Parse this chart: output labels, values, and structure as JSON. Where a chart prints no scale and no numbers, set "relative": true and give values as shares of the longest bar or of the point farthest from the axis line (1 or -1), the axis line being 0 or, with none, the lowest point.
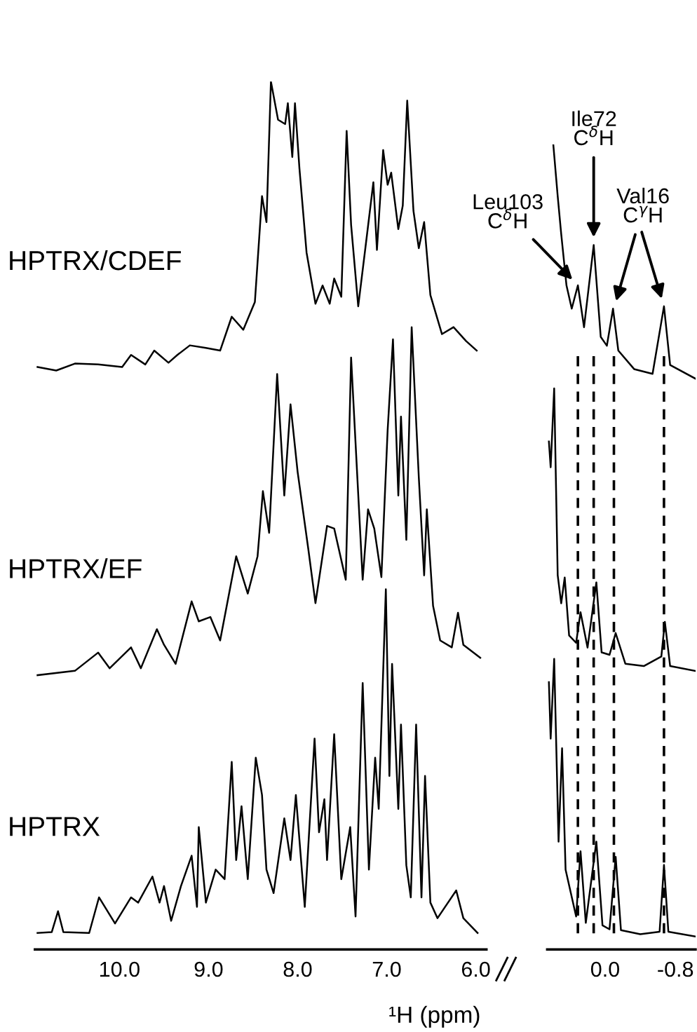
{
  "chart_data": [
    {
      "type": "line",
      "relative": true,
      "xlabel": "¹H (ppm)",
      "tick_labels": "x",
      "xlim": [
        10.95,
        5.88
      ],
      "xticks": [
        {
          "value": 10,
          "label": "10.0"
        },
        {
          "value": 9,
          "label": "9.0"
        },
        {
          "value": 8,
          "label": "8.0"
        },
        {
          "value": 7,
          "label": "7.0"
        },
        {
          "value": 6,
          "label": "6.0"
        }
      ],
      "series": [
        {
          "name": "HPTRX/CDEF",
          "color": "#000000",
          "x": [
            10.92,
            10.71,
            10.5,
            10.24,
            9.97,
            9.87,
            9.71,
            9.61,
            9.45,
            9.35,
            9.21,
            9.03,
            8.87,
            8.74,
            8.61,
            8.48,
            8.4,
            8.35,
            8.3,
            8.22,
            8.14,
            8.11,
            8.06,
            8.03,
            7.98,
            7.9,
            7.8,
            7.72,
            7.64,
            7.59,
            7.51,
            7.45,
            7.4,
            7.32,
            7.24,
            7.15,
            7.11,
            7.04,
            6.99,
            6.95,
            6.87,
            6.82,
            6.77,
            6.7,
            6.64,
            6.58,
            6.51,
            6.38,
            6.25,
            6.11,
            5.99
          ],
          "values": [
            0.671,
            0.667,
            0.675,
            0.674,
            0.671,
            0.685,
            0.674,
            0.69,
            0.676,
            0.685,
            0.696,
            0.693,
            0.69,
            0.729,
            0.714,
            0.746,
            0.868,
            0.838,
            1.0,
            0.956,
            0.951,
            0.975,
            0.913,
            0.975,
            0.9,
            0.803,
            0.744,
            0.765,
            0.744,
            0.773,
            0.752,
            0.943,
            0.835,
            0.741,
            0.808,
            0.884,
            0.806,
            0.921,
            0.881,
            0.895,
            0.83,
            0.857,
            0.978,
            0.851,
            0.808,
            0.838,
            0.754,
            0.709,
            0.717,
            0.701,
            0.69
          ]
        },
        {
          "name": "HPTRX/EF",
          "color": "#000000",
          "x": [
            10.92,
            10.5,
            10.24,
            10.11,
            9.87,
            9.76,
            9.58,
            9.5,
            9.37,
            9.19,
            9.11,
            8.98,
            8.87,
            8.69,
            8.56,
            8.45,
            8.39,
            8.32,
            8.23,
            8.15,
            8.08,
            8.0,
            7.88,
            7.8,
            7.67,
            7.59,
            7.46,
            7.4,
            7.27,
            7.21,
            7.14,
            7.06,
            6.99,
            6.93,
            6.87,
            6.84,
            6.78,
            6.72,
            6.64,
            6.58,
            6.55,
            6.48,
            6.4,
            6.27,
            6.2,
            6.14,
            5.95
          ],
          "values": [
            0.316,
            0.321,
            0.342,
            0.324,
            0.348,
            0.324,
            0.369,
            0.351,
            0.329,
            0.401,
            0.378,
            0.383,
            0.356,
            0.453,
            0.41,
            0.453,
            0.528,
            0.48,
            0.663,
            0.523,
            0.628,
            0.55,
            0.461,
            0.399,
            0.488,
            0.485,
            0.426,
            0.682,
            0.426,
            0.507,
            0.485,
            0.429,
            0.598,
            0.703,
            0.523,
            0.614,
            0.472,
            0.717,
            0.544,
            0.431,
            0.507,
            0.396,
            0.356,
            0.348,
            0.388,
            0.351,
            0.336
          ]
        },
        {
          "name": "HPTRX",
          "color": "#000000",
          "x": [
            10.92,
            10.76,
            10.69,
            10.63,
            10.34,
            10.23,
            10.05,
            9.87,
            9.79,
            9.63,
            9.55,
            9.5,
            9.42,
            9.31,
            9.19,
            9.13,
            9.11,
            9.03,
            8.92,
            8.82,
            8.74,
            8.69,
            8.63,
            8.56,
            8.47,
            8.4,
            8.35,
            8.27,
            8.15,
            8.08,
            8.02,
            7.92,
            7.81,
            7.76,
            7.7,
            7.67,
            7.59,
            7.51,
            7.41,
            7.35,
            7.27,
            7.2,
            7.13,
            7.09,
            7.01,
            6.97,
            6.94,
            6.87,
            6.84,
            6.78,
            6.73,
            6.67,
            6.61,
            6.57,
            6.51,
            6.43,
            6.22,
            6.14,
            5.98
          ],
          "values": [
            0.019,
            0.02,
            0.044,
            0.02,
            0.019,
            0.06,
            0.03,
            0.06,
            0.054,
            0.084,
            0.054,
            0.073,
            0.033,
            0.073,
            0.108,
            0.049,
            0.141,
            0.054,
            0.092,
            0.081,
            0.216,
            0.103,
            0.165,
            0.081,
            0.221,
            0.178,
            0.092,
            0.065,
            0.151,
            0.103,
            0.178,
            0.049,
            0.243,
            0.135,
            0.173,
            0.103,
            0.248,
            0.081,
            0.141,
            0.038,
            0.307,
            0.092,
            0.221,
            0.162,
            0.415,
            0.2,
            0.329,
            0.162,
            0.259,
            0.097,
            0.06,
            0.259,
            0.06,
            0.2,
            0.054,
            0.036,
            0.068,
            0.036,
            0.019
          ]
        }
      ]
    },
    {
      "type": "line",
      "relative": true,
      "tick_labels": "x",
      "xlim": [
        0.66,
        -1.03
      ],
      "xticks": [
        {
          "value": 0,
          "label": "0.0"
        },
        {
          "value": -0.8,
          "label": "-0.8"
        }
      ],
      "series": [
        {
          "color": "#000000",
          "x": [
            0.59,
            0.54,
            0.5,
            0.44,
            0.38,
            0.31,
            0.24,
            0.13,
            0.05,
            -0.02,
            -0.09,
            -0.15,
            -0.33,
            -0.54,
            -0.67,
            -0.74,
            -1.03
          ],
          "values": [
            1.0,
            0.936,
            0.889,
            0.825,
            0.796,
            0.825,
            0.773,
            0.875,
            0.761,
            0.75,
            0.796,
            0.744,
            0.721,
            0.715,
            0.799,
            0.726,
            0.709
          ]
        },
        {
          "color": "#000000",
          "x": [
            0.64,
            0.62,
            0.58,
            0.54,
            0.5,
            0.46,
            0.41,
            0.33,
            0.28,
            0.2,
            0.1,
            0.04,
            -0.05,
            -0.12,
            -0.23,
            -0.44,
            -0.64,
            -0.68,
            -0.74,
            -1.03
          ],
          "values": [
            0.631,
            0.599,
            0.697,
            0.465,
            0.43,
            0.462,
            0.39,
            0.381,
            0.419,
            0.375,
            0.456,
            0.369,
            0.366,
            0.393,
            0.355,
            0.352,
            0.364,
            0.407,
            0.352,
            0.346
          ]
        },
        {
          "color": "#000000",
          "x": [
            0.64,
            0.62,
            0.58,
            0.53,
            0.49,
            0.45,
            0.33,
            0.28,
            0.22,
            0.1,
            0.03,
            -0.05,
            -0.12,
            -0.18,
            -0.4,
            -0.62,
            -0.67,
            -0.72,
            -1.03
          ],
          "values": [
            0.332,
            0.262,
            0.361,
            0.134,
            0.25,
            0.099,
            0.041,
            0.122,
            0.033,
            0.134,
            0.03,
            0.025,
            0.115,
            0.024,
            0.019,
            0.022,
            0.105,
            0.022,
            0.016
          ]
        }
      ],
      "ref_lines": [
        {
          "axis": "x",
          "value": 0.31,
          "color": "#000000",
          "line_style": "dashed"
        },
        {
          "axis": "x",
          "value": 0.13,
          "color": "#000000",
          "line_style": "dashed"
        },
        {
          "axis": "x",
          "value": -0.1,
          "color": "#000000",
          "line_style": "dashed"
        },
        {
          "axis": "x",
          "value": -0.67,
          "color": "#000000",
          "line_style": "dashed"
        }
      ],
      "annotations": [
        {
          "text": "Leu103\nC$^{δ}$H",
          "x": 0.31,
          "y": 0.825
        },
        {
          "text": "Ile72\nC$^{δ}$H",
          "x": 0.13,
          "y": 0.875
        },
        {
          "text": "Val16\nC$^{γ}$H",
          "x": -0.1,
          "y": 0.796
        }
      ]
    }
  ]
}
